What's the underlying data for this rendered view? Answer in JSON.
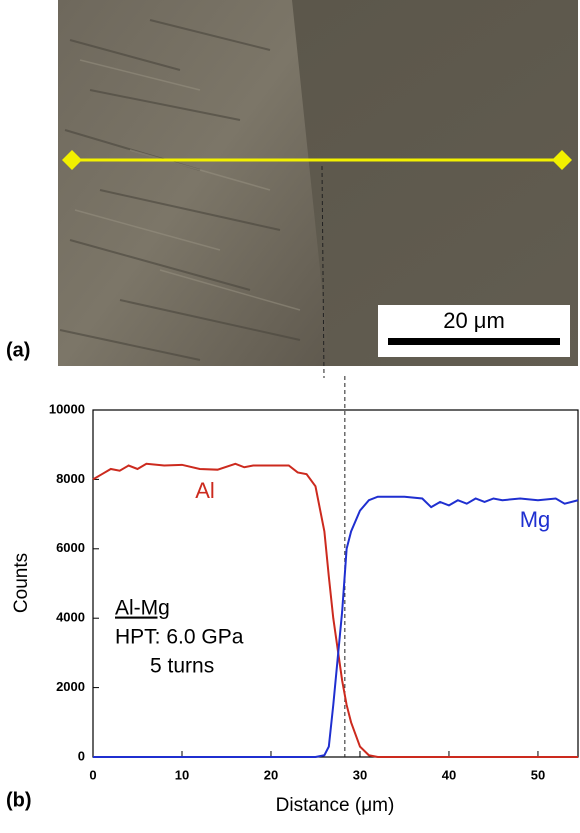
{
  "image_panel": {
    "label": "(a)",
    "scale_bar": "20 μm"
  },
  "chart_data": {
    "type": "line",
    "panel_label": "(b)",
    "x_label": "Distance (μm)",
    "y_label": "Counts",
    "x": [
      0,
      1,
      2,
      3,
      4,
      5,
      6,
      8,
      10,
      12,
      14,
      16,
      17,
      18,
      20,
      22,
      23,
      24,
      25,
      26,
      26.5,
      27,
      28,
      28.5,
      29,
      30,
      31,
      32,
      35,
      37,
      38,
      39,
      40,
      41,
      42,
      43,
      44,
      45,
      46,
      48,
      50,
      52,
      53,
      54.5
    ],
    "series": [
      {
        "name": "Al",
        "color": "#cc2a1e",
        "values": [
          8000,
          8150,
          8300,
          8250,
          8400,
          8300,
          8450,
          8400,
          8420,
          8300,
          8280,
          8450,
          8350,
          8400,
          8400,
          8400,
          8200,
          8150,
          7800,
          6500,
          5200,
          4000,
          2200,
          1500,
          1000,
          300,
          50,
          0,
          0,
          0,
          0,
          0,
          0,
          0,
          0,
          0,
          0,
          0,
          0,
          0,
          0,
          0,
          0,
          0
        ]
      },
      {
        "name": "Mg",
        "color": "#1f2fd0",
        "values": [
          0,
          0,
          0,
          0,
          0,
          0,
          0,
          0,
          0,
          0,
          0,
          0,
          0,
          0,
          0,
          0,
          0,
          0,
          0,
          50,
          300,
          1500,
          4200,
          6000,
          6500,
          7100,
          7400,
          7500,
          7500,
          7450,
          7200,
          7350,
          7250,
          7400,
          7300,
          7450,
          7350,
          7450,
          7400,
          7450,
          7400,
          7450,
          7300,
          7400
        ]
      }
    ],
    "marker_x": 28.3,
    "annotations": [
      "Al-Mg",
      "HPT: 6.0 GPa",
      "5 turns"
    ],
    "xlim": [
      0,
      54.5
    ],
    "xticks": [
      0,
      10,
      20,
      30,
      40,
      50
    ],
    "ylim": [
      0,
      10000
    ],
    "yticks": [
      0,
      2000,
      4000,
      6000,
      8000,
      10000
    ]
  }
}
